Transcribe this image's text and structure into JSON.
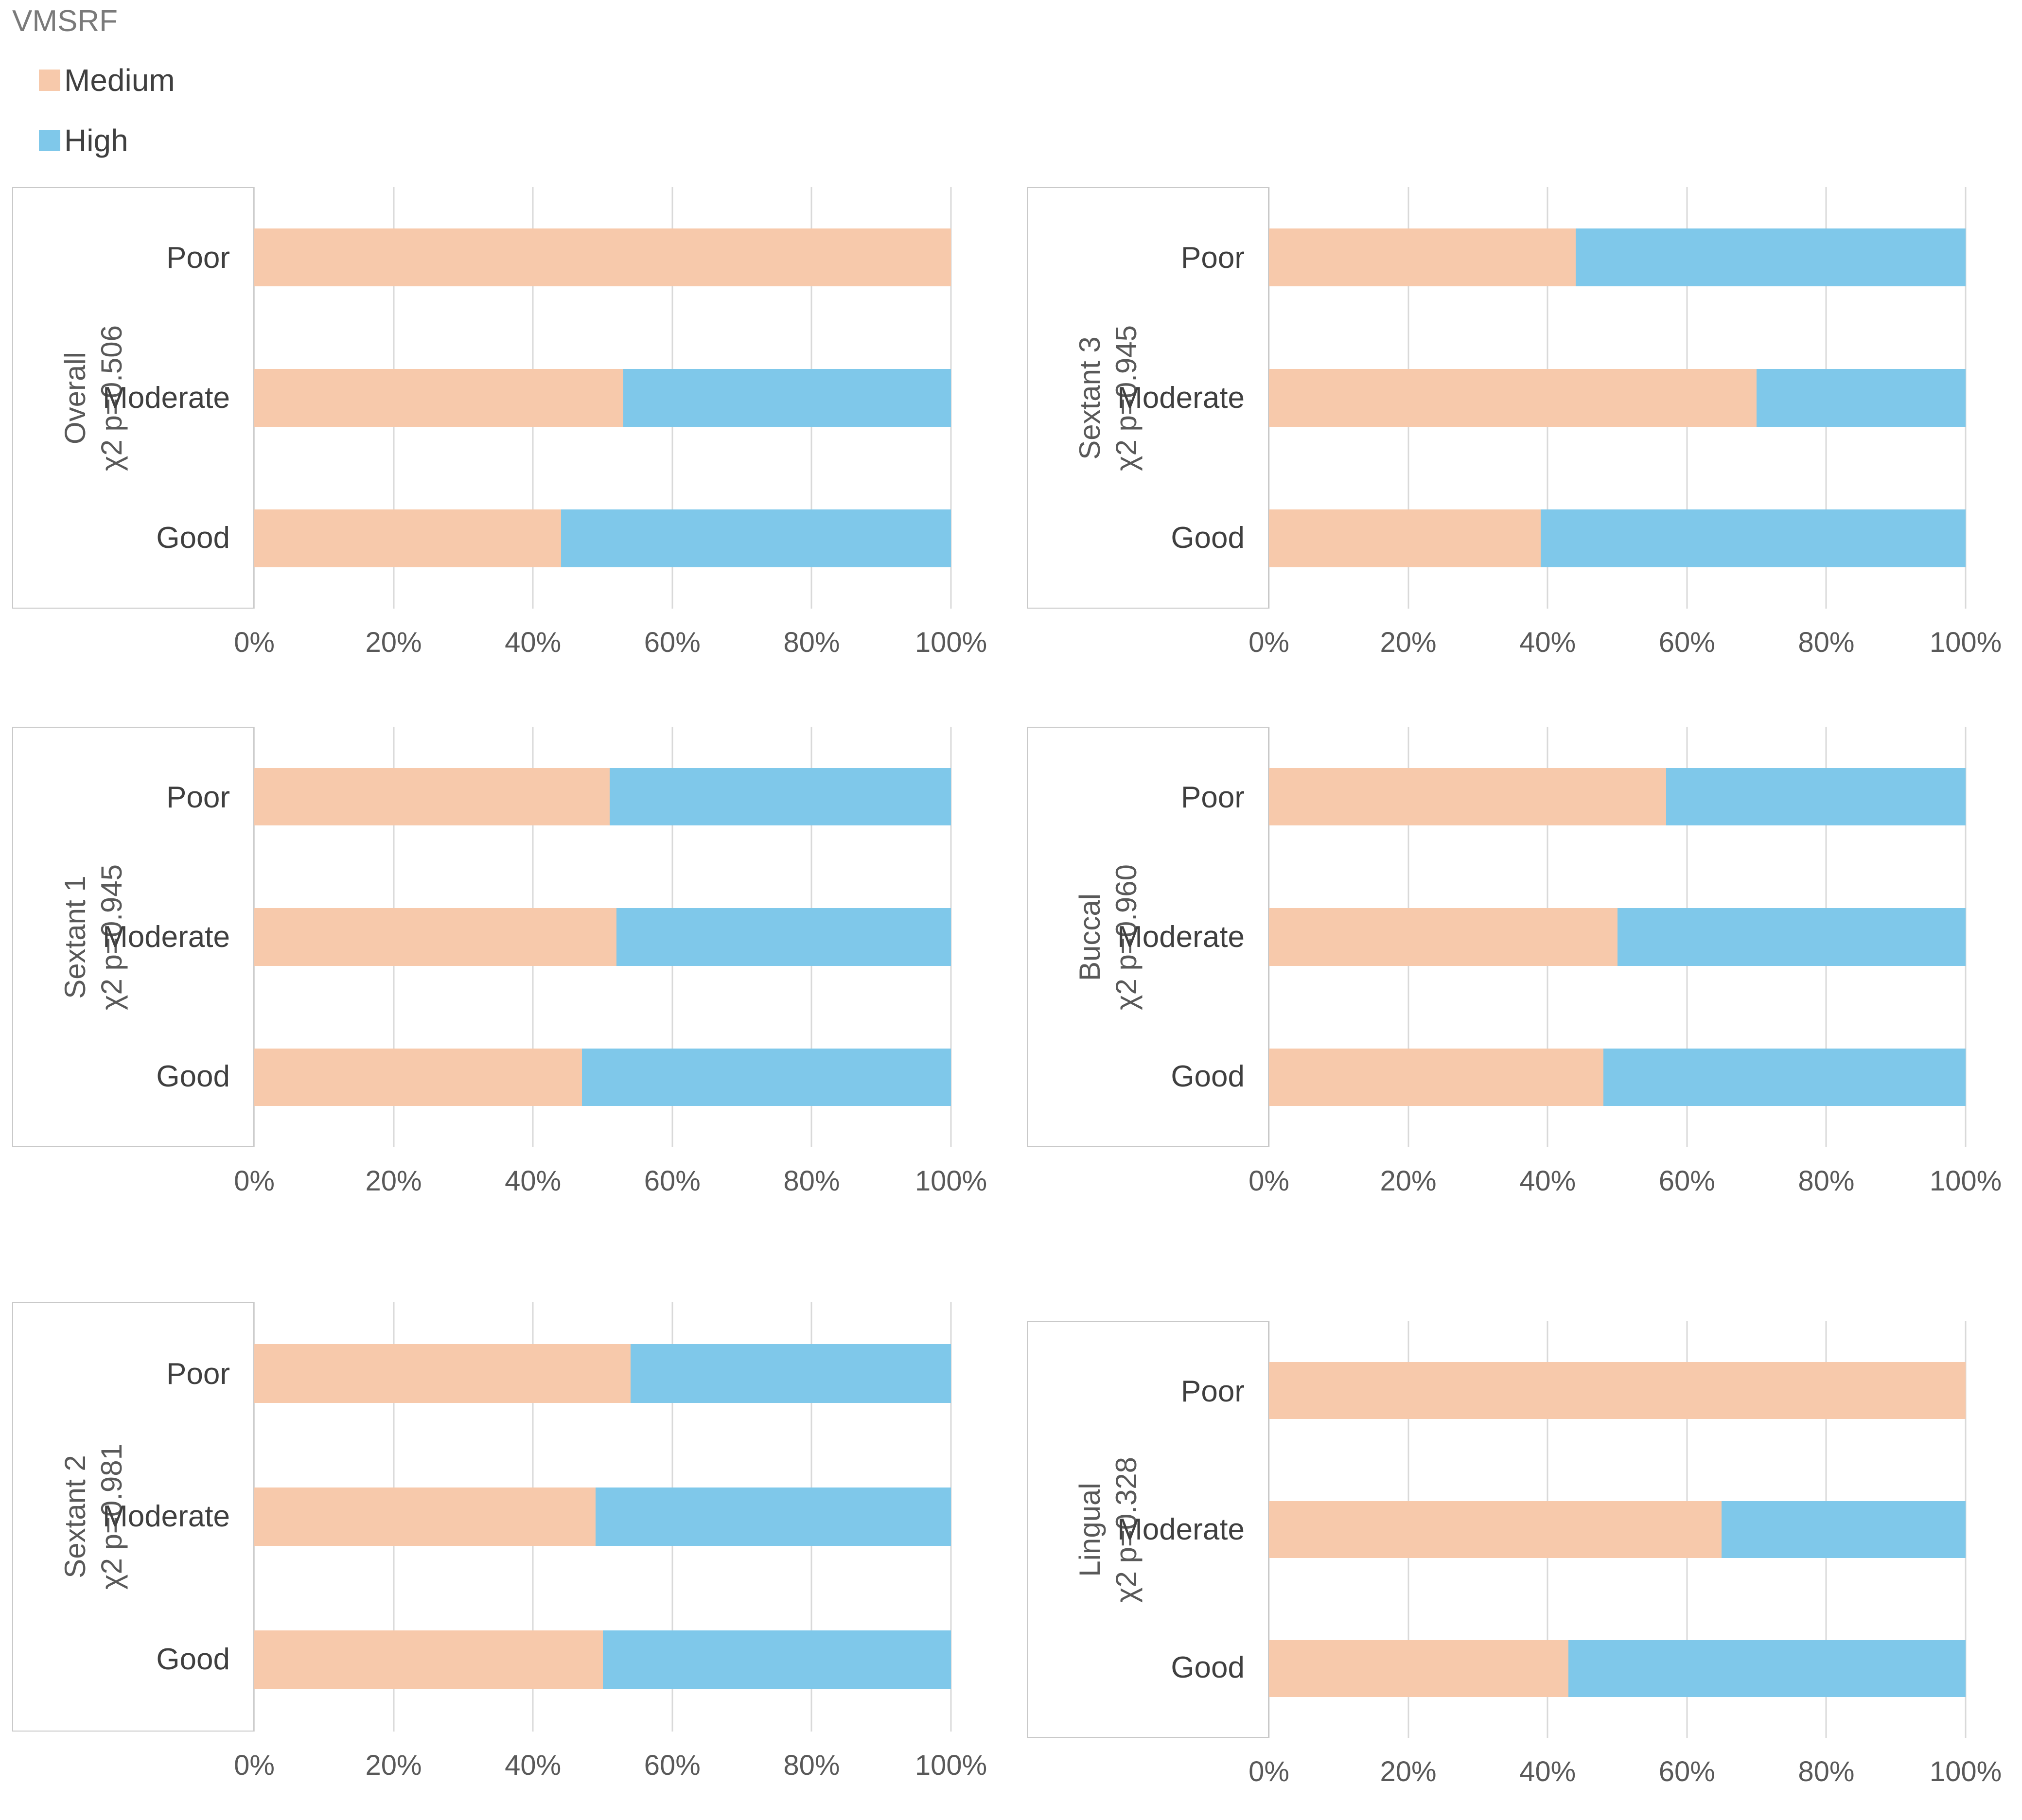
{
  "legend": {
    "title": "VMSRF",
    "items": [
      {
        "label": "Medium",
        "color": "#F7C9AB"
      },
      {
        "label": "High",
        "color": "#7FC8EA"
      }
    ]
  },
  "chart_data": {
    "type": "bar",
    "orientation": "horizontal",
    "stacked": "percent",
    "grid": true,
    "legend_position": "top-left",
    "series_names": [
      "Medium",
      "High"
    ],
    "colors": {
      "medium": "#F7C9AB",
      "high": "#7FC8EA"
    },
    "categories": [
      "Poor",
      "Moderate",
      "Good"
    ],
    "x_tick_labels": [
      "0%",
      "20%",
      "40%",
      "60%",
      "80%",
      "100%"
    ],
    "xlim": [
      0,
      100
    ],
    "charts": [
      {
        "group": "Overall",
        "stat": "χ2 p=0.506",
        "rows": [
          {
            "category": "Poor",
            "medium": 100,
            "high": 0
          },
          {
            "category": "Moderate",
            "medium": 53,
            "high": 47
          },
          {
            "category": "Good",
            "medium": 44,
            "high": 56
          }
        ]
      },
      {
        "group": "Sextant 3",
        "stat": "χ2 p=0.945",
        "rows": [
          {
            "category": "Poor",
            "medium": 44,
            "high": 56
          },
          {
            "category": "Moderate",
            "medium": 70,
            "high": 30
          },
          {
            "category": "Good",
            "medium": 39,
            "high": 61
          }
        ]
      },
      {
        "group": "Sextant 1",
        "stat": "χ2 p=0.945",
        "rows": [
          {
            "category": "Poor",
            "medium": 51,
            "high": 49
          },
          {
            "category": "Moderate",
            "medium": 52,
            "high": 48
          },
          {
            "category": "Good",
            "medium": 47,
            "high": 53
          }
        ]
      },
      {
        "group": "Buccal",
        "stat": "χ2 p=0.960",
        "rows": [
          {
            "category": "Poor",
            "medium": 57,
            "high": 43
          },
          {
            "category": "Moderate",
            "medium": 50,
            "high": 50
          },
          {
            "category": "Good",
            "medium": 48,
            "high": 52
          }
        ]
      },
      {
        "group": "Sextant 2",
        "stat": "χ2 p=0.981",
        "rows": [
          {
            "category": "Poor",
            "medium": 54,
            "high": 46
          },
          {
            "category": "Moderate",
            "medium": 49,
            "high": 51
          },
          {
            "category": "Good",
            "medium": 50,
            "high": 50
          }
        ]
      },
      {
        "group": "Lingual",
        "stat": "χ2 p=0.328",
        "rows": [
          {
            "category": "Poor",
            "medium": 100,
            "high": 0
          },
          {
            "category": "Moderate",
            "medium": 65,
            "high": 35
          },
          {
            "category": "Good",
            "medium": 43,
            "high": 57
          }
        ]
      }
    ]
  }
}
